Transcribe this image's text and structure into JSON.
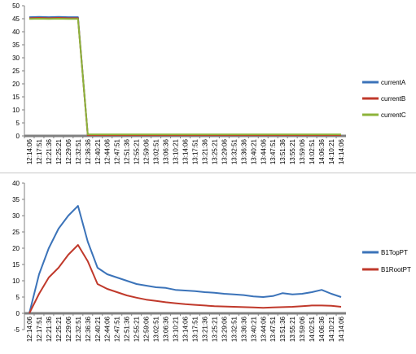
{
  "chart_data": [
    {
      "type": "line",
      "xlabel": "",
      "ylabel": "",
      "ylim": [
        0,
        50
      ],
      "yticks": [
        0,
        5,
        10,
        15,
        20,
        25,
        30,
        35,
        40,
        45,
        50
      ],
      "categories": [
        "12:14:06",
        "12:17:51",
        "12:21:36",
        "12:25:21",
        "12:29:06",
        "12:32:51",
        "12:36:36",
        "12:40:21",
        "12:44:06",
        "12:47:51",
        "12:51:36",
        "12:55:21",
        "12:59:06",
        "13:02:51",
        "13:06:36",
        "13:10:21",
        "13:14:06",
        "13:17:51",
        "13:21:36",
        "13:25:21",
        "13:29:06",
        "13:32:51",
        "13:36:36",
        "13:40:21",
        "13:44:06",
        "13:47:51",
        "13:51:36",
        "13:55:21",
        "13:59:06",
        "14:02:51",
        "14:06:36",
        "14:10:21",
        "14:14:06"
      ],
      "grid": false,
      "legend_position": "right",
      "series": [
        {
          "name": "currentA",
          "color": "#3b73b9",
          "values": [
            45.6,
            45.7,
            45.6,
            45.7,
            45.6,
            45.6,
            0.4,
            0.4,
            0.4,
            0.4,
            0.4,
            0.4,
            0.4,
            0.4,
            0.4,
            0.4,
            0.4,
            0.4,
            0.4,
            0.4,
            0.4,
            0.4,
            0.4,
            0.4,
            0.4,
            0.4,
            0.4,
            0.4,
            0.4,
            0.4,
            0.4,
            0.4,
            0.4
          ]
        },
        {
          "name": "currentB",
          "color": "#c0392b",
          "values": [
            45.2,
            45.3,
            45.2,
            45.3,
            45.2,
            45.2,
            0.3,
            0.3,
            0.3,
            0.3,
            0.3,
            0.3,
            0.3,
            0.3,
            0.3,
            0.3,
            0.3,
            0.3,
            0.3,
            0.3,
            0.3,
            0.3,
            0.3,
            0.3,
            0.3,
            0.3,
            0.3,
            0.3,
            0.3,
            0.3,
            0.3,
            0.3,
            0.3
          ]
        },
        {
          "name": "currentC",
          "color": "#8db33a",
          "values": [
            44.9,
            45.0,
            44.9,
            45.0,
            44.9,
            44.9,
            0.6,
            0.6,
            0.6,
            0.6,
            0.6,
            0.6,
            0.6,
            0.6,
            0.6,
            0.6,
            0.6,
            0.6,
            0.6,
            0.6,
            0.6,
            0.6,
            0.6,
            0.6,
            0.6,
            0.6,
            0.6,
            0.6,
            0.6,
            0.6,
            0.6,
            0.6,
            0.6
          ]
        }
      ]
    },
    {
      "type": "line",
      "xlabel": "",
      "ylabel": "",
      "ylim": [
        -5,
        40
      ],
      "yticks": [
        -5,
        0,
        5,
        10,
        15,
        20,
        25,
        30,
        35,
        40
      ],
      "categories": [
        "12:14:06",
        "12:17:51",
        "12:21:36",
        "12:25:21",
        "12:29:06",
        "12:32:51",
        "12:36:36",
        "12:40:21",
        "12:44:06",
        "12:47:51",
        "12:51:36",
        "12:55:21",
        "12:59:06",
        "13:02:51",
        "13:06:36",
        "13:10:21",
        "13:14:06",
        "13:17:51",
        "13:21:36",
        "13:25:21",
        "13:29:06",
        "13:32:51",
        "13:36:36",
        "13:40:21",
        "13:44:06",
        "13:47:51",
        "13:51:36",
        "13:55:21",
        "13:59:06",
        "14:02:51",
        "14:06:36",
        "14:10:21",
        "14:14:06"
      ],
      "grid": false,
      "legend_position": "right",
      "series": [
        {
          "name": "B1TopPT",
          "color": "#3b73b9",
          "values": [
            0,
            12,
            20,
            26,
            30,
            33,
            22,
            14,
            12,
            11,
            10,
            9,
            8.5,
            8,
            7.8,
            7.2,
            7,
            6.8,
            6.5,
            6.3,
            6,
            5.8,
            5.6,
            5.2,
            5,
            5.3,
            6.2,
            5.8,
            6,
            6.5,
            7.2,
            6,
            5
          ]
        },
        {
          "name": "B1RootPT",
          "color": "#c0392b",
          "values": [
            0,
            6,
            11,
            14,
            18,
            21,
            16,
            9,
            7.5,
            6.5,
            5.5,
            4.8,
            4.2,
            3.8,
            3.4,
            3.1,
            2.8,
            2.6,
            2.4,
            2.2,
            2.1,
            2,
            1.9,
            1.8,
            1.7,
            1.8,
            1.9,
            2,
            2.2,
            2.4,
            2.4,
            2.3,
            2
          ]
        }
      ]
    }
  ]
}
